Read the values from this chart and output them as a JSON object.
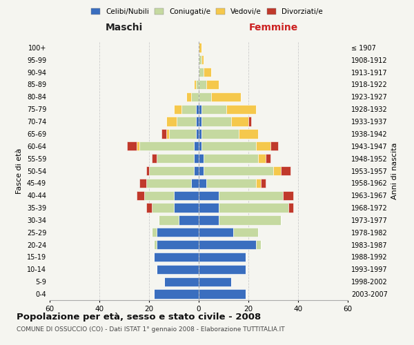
{
  "age_groups": [
    "0-4",
    "5-9",
    "10-14",
    "15-19",
    "20-24",
    "25-29",
    "30-34",
    "35-39",
    "40-44",
    "45-49",
    "50-54",
    "55-59",
    "60-64",
    "65-69",
    "70-74",
    "75-79",
    "80-84",
    "85-89",
    "90-94",
    "95-99",
    "100+"
  ],
  "birth_years": [
    "2003-2007",
    "1998-2002",
    "1993-1997",
    "1988-1992",
    "1983-1987",
    "1978-1982",
    "1973-1977",
    "1968-1972",
    "1963-1967",
    "1958-1962",
    "1953-1957",
    "1948-1952",
    "1943-1947",
    "1938-1942",
    "1933-1937",
    "1928-1932",
    "1923-1927",
    "1918-1922",
    "1913-1917",
    "1908-1912",
    "≤ 1907"
  ],
  "colors": {
    "celibi": "#3a6ebf",
    "coniugati": "#c5d9a0",
    "vedovi": "#f5c84c",
    "divorziati": "#c0392b"
  },
  "maschi": {
    "celibi": [
      18,
      14,
      17,
      18,
      17,
      17,
      8,
      10,
      10,
      3,
      2,
      2,
      2,
      1,
      1,
      1,
      0,
      0,
      0,
      0,
      0
    ],
    "coniugati": [
      0,
      0,
      0,
      0,
      1,
      2,
      8,
      9,
      12,
      18,
      18,
      15,
      22,
      11,
      8,
      6,
      3,
      1,
      0,
      0,
      0
    ],
    "vedovi": [
      0,
      0,
      0,
      0,
      0,
      0,
      0,
      0,
      0,
      0,
      0,
      0,
      1,
      1,
      4,
      3,
      2,
      1,
      0,
      0,
      0
    ],
    "divorziati": [
      0,
      0,
      0,
      0,
      0,
      0,
      0,
      2,
      3,
      3,
      1,
      2,
      4,
      2,
      0,
      0,
      0,
      0,
      0,
      0,
      0
    ]
  },
  "femmine": {
    "celibi": [
      19,
      13,
      19,
      19,
      23,
      14,
      8,
      8,
      8,
      3,
      2,
      2,
      1,
      1,
      1,
      1,
      0,
      0,
      0,
      0,
      0
    ],
    "coniugati": [
      0,
      0,
      0,
      0,
      2,
      10,
      25,
      28,
      26,
      20,
      28,
      22,
      22,
      15,
      12,
      10,
      5,
      3,
      2,
      1,
      0
    ],
    "vedovi": [
      0,
      0,
      0,
      0,
      0,
      0,
      0,
      0,
      0,
      2,
      3,
      3,
      6,
      8,
      7,
      12,
      12,
      5,
      3,
      1,
      1
    ],
    "divorziati": [
      0,
      0,
      0,
      0,
      0,
      0,
      0,
      2,
      4,
      2,
      4,
      2,
      3,
      0,
      1,
      0,
      0,
      0,
      0,
      0,
      0
    ]
  },
  "xlim": 60,
  "title": "Popolazione per età, sesso e stato civile - 2008",
  "subtitle": "COMUNE DI OSSUCCIO (CO) - Dati ISTAT 1° gennaio 2008 - Elaborazione TUTTITALIA.IT",
  "ylabel_left": "Fasce di età",
  "ylabel_right": "Anni di nascita",
  "label_maschi": "Maschi",
  "label_femmine": "Femmine",
  "background_color": "#f5f5f0",
  "grid_color": "#cccccc"
}
